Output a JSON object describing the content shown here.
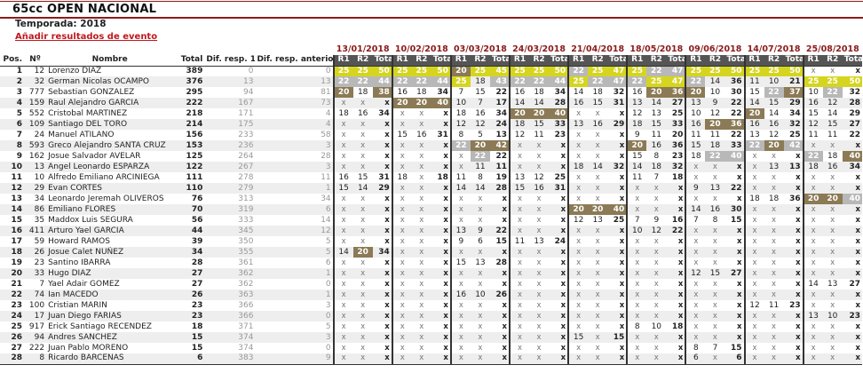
{
  "page": {
    "title": "65cc OPEN NACIONAL",
    "season": "Temporada: 2018",
    "add_link": "Añadir resultados de evento"
  },
  "highlight_colors": {
    "y": "#d5d51f",
    "s": "#b8b8b8",
    "b": "#8b7a55"
  },
  "none_mark": "x",
  "columns": {
    "pos": "Pos.",
    "num": "Nº",
    "name": "Nombre",
    "total": "Total",
    "dif_first": "Dif. resp. 1º",
    "dif_prev": "Dif. resp. anterior",
    "r1": "R1",
    "r2": "R2",
    "event_total": "Total"
  },
  "events": [
    "13/01/2018",
    "10/02/2018",
    "03/03/2018",
    "24/03/2018",
    "21/04/2018",
    "18/05/2018",
    "09/06/2018",
    "14/07/2018",
    "25/08/2018"
  ],
  "rows": [
    {
      "pos": "1",
      "num": "12",
      "name": "Lorenzo DIAZ",
      "total": "389",
      "dif1": "0",
      "difp": "0",
      "ev": [
        [
          "25",
          "25",
          "50",
          "yyy"
        ],
        [
          "25",
          "25",
          "50",
          "yyy"
        ],
        [
          "20",
          "25",
          "45",
          "byy"
        ],
        [
          "25",
          "25",
          "50",
          "yyy"
        ],
        [
          "22",
          "25",
          "47",
          "syy"
        ],
        [
          "25",
          "22",
          "47",
          "yss"
        ],
        [
          "25",
          "25",
          "50",
          "yyy"
        ],
        [
          "25",
          "25",
          "50",
          "yyy"
        ],
        null
      ]
    },
    {
      "pos": "2",
      "num": "32",
      "name": "German Nicolas OCAMPO",
      "total": "376",
      "dif1": "13",
      "difp": "13",
      "ev": [
        [
          "22",
          "22",
          "44",
          "sss"
        ],
        [
          "22",
          "22",
          "44",
          "sss"
        ],
        [
          "25",
          "18",
          "43",
          "y-s"
        ],
        [
          "22",
          "22",
          "44",
          "sss"
        ],
        [
          "25",
          "22",
          "47",
          "yss"
        ],
        [
          "22",
          "25",
          "47",
          "syy"
        ],
        [
          "22",
          "14",
          "36",
          "s--"
        ],
        [
          "11",
          "10",
          "21",
          "---"
        ],
        [
          "25",
          "25",
          "50",
          "yyy"
        ]
      ]
    },
    {
      "pos": "3",
      "num": "777",
      "name": "Sebastian GONZALEZ",
      "total": "295",
      "dif1": "94",
      "difp": "81",
      "ev": [
        [
          "20",
          "18",
          "38",
          "b-b"
        ],
        [
          "16",
          "18",
          "34",
          "---"
        ],
        [
          "7",
          "15",
          "22",
          "---"
        ],
        [
          "16",
          "18",
          "34",
          "---"
        ],
        [
          "14",
          "18",
          "32",
          "---"
        ],
        [
          "16",
          "20",
          "36",
          "-bb"
        ],
        [
          "20",
          "10",
          "30",
          "b--"
        ],
        [
          "15",
          "22",
          "37",
          "-sb"
        ],
        [
          "10",
          "22",
          "32",
          "-s-"
        ]
      ]
    },
    {
      "pos": "4",
      "num": "159",
      "name": "Raul Alejandro GARCIA",
      "total": "222",
      "dif1": "167",
      "difp": "73",
      "ev": [
        null,
        [
          "20",
          "20",
          "40",
          "bbb"
        ],
        [
          "10",
          "7",
          "17",
          "---"
        ],
        [
          "14",
          "14",
          "28",
          "---"
        ],
        [
          "16",
          "15",
          "31",
          "---"
        ],
        [
          "13",
          "14",
          "27",
          "---"
        ],
        [
          "13",
          "9",
          "22",
          "---"
        ],
        [
          "14",
          "15",
          "29",
          "---"
        ],
        [
          "16",
          "12",
          "28",
          "---"
        ]
      ]
    },
    {
      "pos": "5",
      "num": "552",
      "name": "Cristobal MARTINEZ",
      "total": "218",
      "dif1": "171",
      "difp": "4",
      "ev": [
        [
          "18",
          "16",
          "34",
          "---"
        ],
        null,
        [
          "18",
          "16",
          "34",
          "---"
        ],
        [
          "20",
          "20",
          "40",
          "bbb"
        ],
        null,
        [
          "12",
          "13",
          "25",
          "---"
        ],
        [
          "10",
          "12",
          "22",
          "---"
        ],
        [
          "20",
          "14",
          "34",
          "b--"
        ],
        [
          "15",
          "14",
          "29",
          "---"
        ]
      ]
    },
    {
      "pos": "6",
      "num": "109",
      "name": "Santiago DEL TORO",
      "total": "214",
      "dif1": "175",
      "difp": "4",
      "ev": [
        null,
        null,
        [
          "12",
          "12",
          "24",
          "---"
        ],
        [
          "18",
          "15",
          "33",
          "---"
        ],
        [
          "13",
          "16",
          "29",
          "---"
        ],
        [
          "18",
          "15",
          "33",
          "---"
        ],
        [
          "16",
          "20",
          "36",
          "-bb"
        ],
        [
          "16",
          "16",
          "32",
          "---"
        ],
        [
          "12",
          "15",
          "27",
          "---"
        ]
      ]
    },
    {
      "pos": "7",
      "num": "24",
      "name": "Manuel ATILANO",
      "total": "156",
      "dif1": "233",
      "difp": "58",
      "ev": [
        null,
        [
          "15",
          "16",
          "31",
          "---"
        ],
        [
          "8",
          "5",
          "13",
          "---"
        ],
        [
          "12",
          "11",
          "23",
          "---"
        ],
        null,
        [
          "9",
          "11",
          "20",
          "---"
        ],
        [
          "11",
          "11",
          "22",
          "---"
        ],
        [
          "13",
          "12",
          "25",
          "---"
        ],
        [
          "11",
          "11",
          "22",
          "---"
        ]
      ]
    },
    {
      "pos": "8",
      "num": "593",
      "name": "Greco Alejandro SANTA CRUZ",
      "total": "153",
      "dif1": "236",
      "difp": "3",
      "ev": [
        null,
        null,
        [
          "22",
          "20",
          "42",
          "sbb"
        ],
        null,
        null,
        [
          "20",
          "16",
          "36",
          "b--"
        ],
        [
          "15",
          "18",
          "33",
          "---"
        ],
        [
          "22",
          "20",
          "42",
          "sbs"
        ],
        null
      ]
    },
    {
      "pos": "9",
      "num": "162",
      "name": "Josue Salvador AVELAR",
      "total": "125",
      "dif1": "264",
      "difp": "28",
      "ev": [
        null,
        null,
        [
          "x",
          "22",
          "22",
          "-s-"
        ],
        null,
        null,
        [
          "15",
          "8",
          "23",
          "---"
        ],
        [
          "18",
          "22",
          "40",
          "-ss"
        ],
        null,
        [
          "22",
          "18",
          "40",
          "s-b"
        ]
      ]
    },
    {
      "pos": "10",
      "num": "13",
      "name": "Angel Leonardo ESPARZA",
      "total": "122",
      "dif1": "267",
      "difp": "3",
      "ev": [
        null,
        null,
        [
          "x",
          "11",
          "11",
          "---"
        ],
        null,
        [
          "18",
          "14",
          "32",
          "---"
        ],
        [
          "14",
          "18",
          "32",
          "---"
        ],
        null,
        [
          "x",
          "13",
          "13",
          "---"
        ],
        [
          "18",
          "16",
          "34",
          "---"
        ]
      ]
    },
    {
      "pos": "11",
      "num": "10",
      "name": "Alfredo Emiliano ARCINIEGA",
      "total": "111",
      "dif1": "278",
      "difp": "11",
      "ev": [
        [
          "16",
          "15",
          "31",
          "---"
        ],
        [
          "18",
          "x",
          "18",
          "---"
        ],
        [
          "11",
          "8",
          "19",
          "---"
        ],
        [
          "13",
          "12",
          "25",
          "---"
        ],
        null,
        [
          "11",
          "7",
          "18",
          "---"
        ],
        null,
        null,
        null
      ]
    },
    {
      "pos": "12",
      "num": "29",
      "name": "Evan CORTES",
      "total": "110",
      "dif1": "279",
      "difp": "1",
      "ev": [
        [
          "15",
          "14",
          "29",
          "---"
        ],
        null,
        [
          "14",
          "14",
          "28",
          "---"
        ],
        [
          "15",
          "16",
          "31",
          "---"
        ],
        null,
        null,
        [
          "9",
          "13",
          "22",
          "---"
        ],
        null,
        null
      ]
    },
    {
      "pos": "13",
      "num": "34",
      "name": "Leonardo Jeremah OLIVEROS",
      "total": "76",
      "dif1": "313",
      "difp": "34",
      "ev": [
        null,
        null,
        null,
        null,
        null,
        null,
        null,
        [
          "18",
          "18",
          "36",
          "---"
        ],
        [
          "20",
          "20",
          "40",
          "bbs"
        ]
      ]
    },
    {
      "pos": "14",
      "num": "86",
      "name": "Emiliano FLORES",
      "total": "70",
      "dif1": "319",
      "difp": "6",
      "ev": [
        null,
        null,
        null,
        null,
        [
          "20",
          "20",
          "40",
          "bbb"
        ],
        null,
        [
          "14",
          "16",
          "30",
          "---"
        ],
        null,
        null
      ]
    },
    {
      "pos": "15",
      "num": "35",
      "name": "Maddox Luis SEGURA",
      "total": "56",
      "dif1": "333",
      "difp": "14",
      "ev": [
        null,
        null,
        null,
        null,
        [
          "12",
          "13",
          "25",
          "---"
        ],
        [
          "7",
          "9",
          "16",
          "---"
        ],
        [
          "7",
          "8",
          "15",
          "---"
        ],
        null,
        null
      ]
    },
    {
      "pos": "16",
      "num": "411",
      "name": "Arturo Yael GARCIA",
      "total": "44",
      "dif1": "345",
      "difp": "12",
      "ev": [
        null,
        null,
        [
          "13",
          "9",
          "22",
          "---"
        ],
        null,
        null,
        [
          "10",
          "12",
          "22",
          "---"
        ],
        null,
        null,
        null
      ]
    },
    {
      "pos": "17",
      "num": "59",
      "name": "Howard RAMOS",
      "total": "39",
      "dif1": "350",
      "difp": "5",
      "ev": [
        null,
        null,
        [
          "9",
          "6",
          "15",
          "---"
        ],
        [
          "11",
          "13",
          "24",
          "---"
        ],
        null,
        null,
        null,
        null,
        null
      ]
    },
    {
      "pos": "18",
      "num": "26",
      "name": "Josue Calet NUÑEZ",
      "total": "34",
      "dif1": "355",
      "difp": "5",
      "ev": [
        [
          "14",
          "20",
          "34",
          "-b-"
        ],
        null,
        null,
        null,
        null,
        null,
        null,
        null,
        null
      ]
    },
    {
      "pos": "19",
      "num": "23",
      "name": "Santino IBARRA",
      "total": "28",
      "dif1": "361",
      "difp": "6",
      "ev": [
        null,
        null,
        [
          "15",
          "13",
          "28",
          "---"
        ],
        null,
        null,
        null,
        null,
        null,
        null
      ]
    },
    {
      "pos": "20",
      "num": "33",
      "name": "Hugo DIAZ",
      "total": "27",
      "dif1": "362",
      "difp": "1",
      "ev": [
        null,
        null,
        null,
        null,
        null,
        null,
        [
          "12",
          "15",
          "27",
          "---"
        ],
        null,
        null
      ]
    },
    {
      "pos": "21",
      "num": "7",
      "name": "Yael Adair GOMEZ",
      "total": "27",
      "dif1": "362",
      "difp": "0",
      "ev": [
        null,
        null,
        null,
        null,
        null,
        null,
        null,
        null,
        [
          "14",
          "13",
          "27",
          "---"
        ]
      ]
    },
    {
      "pos": "22",
      "num": "74",
      "name": "Ian MACEDO",
      "total": "26",
      "dif1": "363",
      "difp": "1",
      "ev": [
        null,
        null,
        [
          "16",
          "10",
          "26",
          "---"
        ],
        null,
        null,
        null,
        null,
        null,
        null
      ]
    },
    {
      "pos": "23",
      "num": "100",
      "name": "Cristian MARIN",
      "total": "23",
      "dif1": "366",
      "difp": "3",
      "ev": [
        null,
        null,
        null,
        null,
        null,
        null,
        null,
        [
          "12",
          "11",
          "23",
          "---"
        ],
        null
      ]
    },
    {
      "pos": "24",
      "num": "17",
      "name": "Juan Diego FARIAS",
      "total": "23",
      "dif1": "366",
      "difp": "0",
      "ev": [
        null,
        null,
        null,
        null,
        null,
        null,
        null,
        null,
        [
          "13",
          "10",
          "23",
          "---"
        ]
      ]
    },
    {
      "pos": "25",
      "num": "917",
      "name": "Erick Santiago RECENDEZ",
      "total": "18",
      "dif1": "371",
      "difp": "5",
      "ev": [
        null,
        null,
        null,
        null,
        null,
        [
          "8",
          "10",
          "18",
          "---"
        ],
        null,
        null,
        null
      ]
    },
    {
      "pos": "26",
      "num": "94",
      "name": "Andres SANCHEZ",
      "total": "15",
      "dif1": "374",
      "difp": "3",
      "ev": [
        null,
        null,
        null,
        null,
        [
          "15",
          "x",
          "15",
          "---"
        ],
        null,
        null,
        null,
        null
      ]
    },
    {
      "pos": "27",
      "num": "222",
      "name": "Juan Pablo MORENO",
      "total": "15",
      "dif1": "374",
      "difp": "0",
      "ev": [
        null,
        null,
        null,
        null,
        null,
        null,
        [
          "8",
          "7",
          "15",
          "---"
        ],
        null,
        null
      ]
    },
    {
      "pos": "28",
      "num": "8",
      "name": "Ricardo BARCENAS",
      "total": "6",
      "dif1": "383",
      "difp": "9",
      "ev": [
        null,
        null,
        null,
        null,
        null,
        null,
        [
          "6",
          "x",
          "6",
          "---"
        ],
        null,
        null
      ]
    }
  ]
}
